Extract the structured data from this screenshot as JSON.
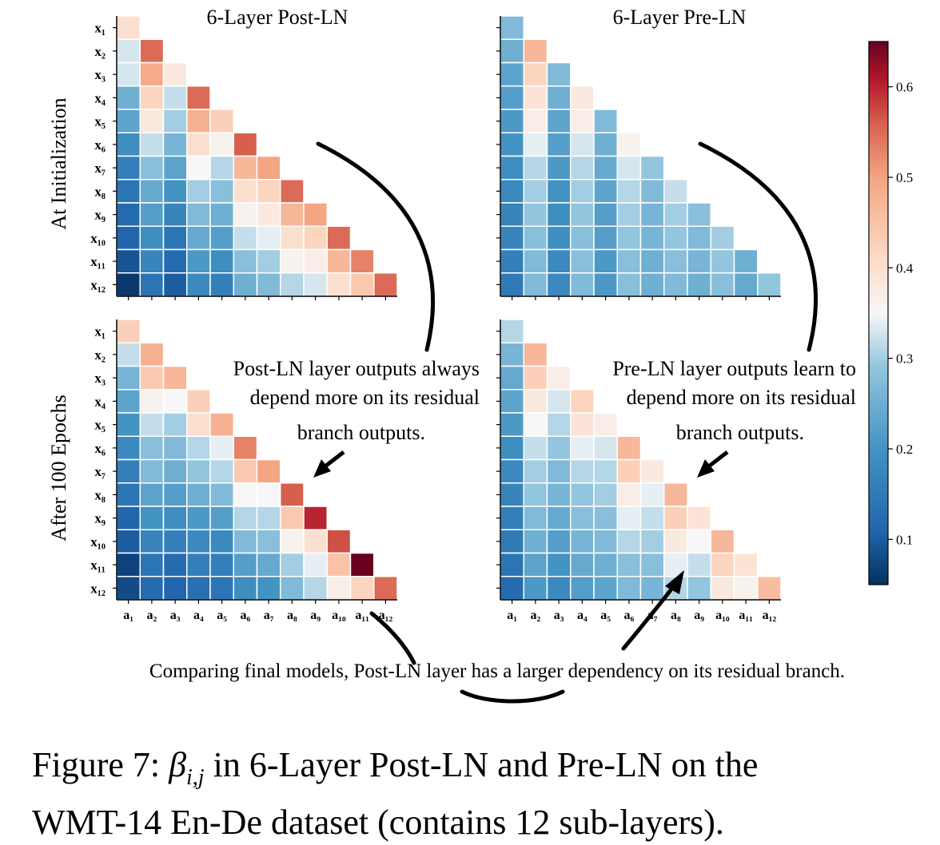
{
  "panels": [
    {
      "title": "6-Layer Post-LN"
    },
    {
      "title": "6-Layer Pre-LN"
    }
  ],
  "row_labels": [
    "At Initialization",
    "After 100 Epochs"
  ],
  "annotations": {
    "postln": [
      "Post-LN layer outputs always",
      "depend more on its residual",
      "branch outputs."
    ],
    "preln": [
      "Pre-LN layer outputs learn to",
      "depend more on its residual",
      "branch outputs."
    ],
    "bottom": "Comparing final models, Post-LN layer has a larger dependency on its residual branch."
  },
  "caption": {
    "prefix": "Figure 7: ",
    "symbol": "β",
    "subscript": "i,j",
    "line1_rest": " in 6-Layer Post-LN and Pre-LN on the",
    "line2": "WMT-14 En-De dataset (contains 12 sub-layers)."
  },
  "chart_data": {
    "type": "heatmap",
    "row_var": "x",
    "col_var": "a",
    "colorbar": {
      "range": [
        0.05,
        0.65
      ],
      "ticks": [
        0.1,
        0.2,
        0.3,
        0.4,
        0.5,
        0.6
      ],
      "tick_labels": [
        "0.1",
        "0.2",
        "0.3",
        "0.4",
        "0.5",
        "0.6"
      ]
    },
    "panels": [
      {
        "name": "Post-LN init",
        "matrix": [
          [
            0.4
          ],
          [
            0.33,
            0.55
          ],
          [
            0.33,
            0.49,
            0.38
          ],
          [
            0.25,
            0.42,
            0.32,
            0.55
          ],
          [
            0.23,
            0.38,
            0.3,
            0.48,
            0.43
          ],
          [
            0.19,
            0.32,
            0.26,
            0.4,
            0.36,
            0.56
          ],
          [
            0.16,
            0.28,
            0.23,
            0.35,
            0.31,
            0.47,
            0.5
          ],
          [
            0.14,
            0.24,
            0.2,
            0.3,
            0.28,
            0.4,
            0.42,
            0.55
          ],
          [
            0.12,
            0.22,
            0.17,
            0.27,
            0.25,
            0.36,
            0.38,
            0.47,
            0.5
          ],
          [
            0.11,
            0.19,
            0.14,
            0.24,
            0.22,
            0.32,
            0.34,
            0.4,
            0.42,
            0.55
          ],
          [
            0.09,
            0.17,
            0.12,
            0.21,
            0.19,
            0.28,
            0.3,
            0.36,
            0.37,
            0.47,
            0.53
          ],
          [
            0.06,
            0.14,
            0.1,
            0.18,
            0.16,
            0.25,
            0.27,
            0.31,
            0.33,
            0.4,
            0.44,
            0.55
          ]
        ]
      },
      {
        "name": "Pre-LN init",
        "matrix": [
          [
            0.27
          ],
          [
            0.25,
            0.47
          ],
          [
            0.23,
            0.42,
            0.27
          ],
          [
            0.22,
            0.39,
            0.25,
            0.38
          ],
          [
            0.21,
            0.37,
            0.23,
            0.37,
            0.27
          ],
          [
            0.2,
            0.34,
            0.22,
            0.33,
            0.25,
            0.36
          ],
          [
            0.19,
            0.31,
            0.21,
            0.31,
            0.24,
            0.33,
            0.29
          ],
          [
            0.18,
            0.3,
            0.2,
            0.3,
            0.23,
            0.31,
            0.27,
            0.32
          ],
          [
            0.17,
            0.29,
            0.19,
            0.29,
            0.22,
            0.3,
            0.26,
            0.3,
            0.28
          ],
          [
            0.17,
            0.28,
            0.19,
            0.28,
            0.22,
            0.29,
            0.26,
            0.29,
            0.27,
            0.3
          ],
          [
            0.16,
            0.27,
            0.18,
            0.28,
            0.21,
            0.28,
            0.25,
            0.28,
            0.26,
            0.29,
            0.25
          ],
          [
            0.15,
            0.27,
            0.18,
            0.27,
            0.21,
            0.28,
            0.25,
            0.27,
            0.25,
            0.28,
            0.24,
            0.29
          ]
        ]
      },
      {
        "name": "Post-LN 100 epochs",
        "matrix": [
          [
            0.43
          ],
          [
            0.32,
            0.48
          ],
          [
            0.26,
            0.44,
            0.47
          ],
          [
            0.23,
            0.36,
            0.35,
            0.43
          ],
          [
            0.2,
            0.32,
            0.3,
            0.4,
            0.48
          ],
          [
            0.18,
            0.28,
            0.27,
            0.31,
            0.34,
            0.53
          ],
          [
            0.16,
            0.27,
            0.25,
            0.29,
            0.31,
            0.44,
            0.5
          ],
          [
            0.14,
            0.23,
            0.22,
            0.25,
            0.27,
            0.35,
            0.35,
            0.56
          ],
          [
            0.11,
            0.2,
            0.19,
            0.21,
            0.22,
            0.31,
            0.31,
            0.44,
            0.6
          ],
          [
            0.1,
            0.17,
            0.16,
            0.18,
            0.18,
            0.27,
            0.28,
            0.36,
            0.4,
            0.57
          ],
          [
            0.07,
            0.14,
            0.12,
            0.16,
            0.16,
            0.22,
            0.24,
            0.3,
            0.34,
            0.45,
            0.65
          ],
          [
            0.08,
            0.12,
            0.11,
            0.13,
            0.14,
            0.19,
            0.2,
            0.27,
            0.31,
            0.37,
            0.42,
            0.55
          ]
        ]
      },
      {
        "name": "Pre-LN 100 epochs",
        "matrix": [
          [
            0.31
          ],
          [
            0.26,
            0.47
          ],
          [
            0.24,
            0.43,
            0.37
          ],
          [
            0.23,
            0.38,
            0.33,
            0.42
          ],
          [
            0.21,
            0.35,
            0.31,
            0.39,
            0.37
          ],
          [
            0.19,
            0.32,
            0.29,
            0.34,
            0.33,
            0.47
          ],
          [
            0.18,
            0.3,
            0.27,
            0.31,
            0.31,
            0.43,
            0.38
          ],
          [
            0.17,
            0.29,
            0.26,
            0.29,
            0.3,
            0.37,
            0.34,
            0.47
          ],
          [
            0.16,
            0.27,
            0.24,
            0.28,
            0.28,
            0.34,
            0.32,
            0.43,
            0.39
          ],
          [
            0.15,
            0.25,
            0.22,
            0.26,
            0.27,
            0.31,
            0.3,
            0.38,
            0.35,
            0.47
          ],
          [
            0.14,
            0.23,
            0.2,
            0.24,
            0.25,
            0.28,
            0.28,
            0.34,
            0.32,
            0.42,
            0.39
          ],
          [
            0.12,
            0.21,
            0.18,
            0.22,
            0.23,
            0.27,
            0.26,
            0.31,
            0.29,
            0.38,
            0.36,
            0.46
          ]
        ]
      }
    ]
  }
}
